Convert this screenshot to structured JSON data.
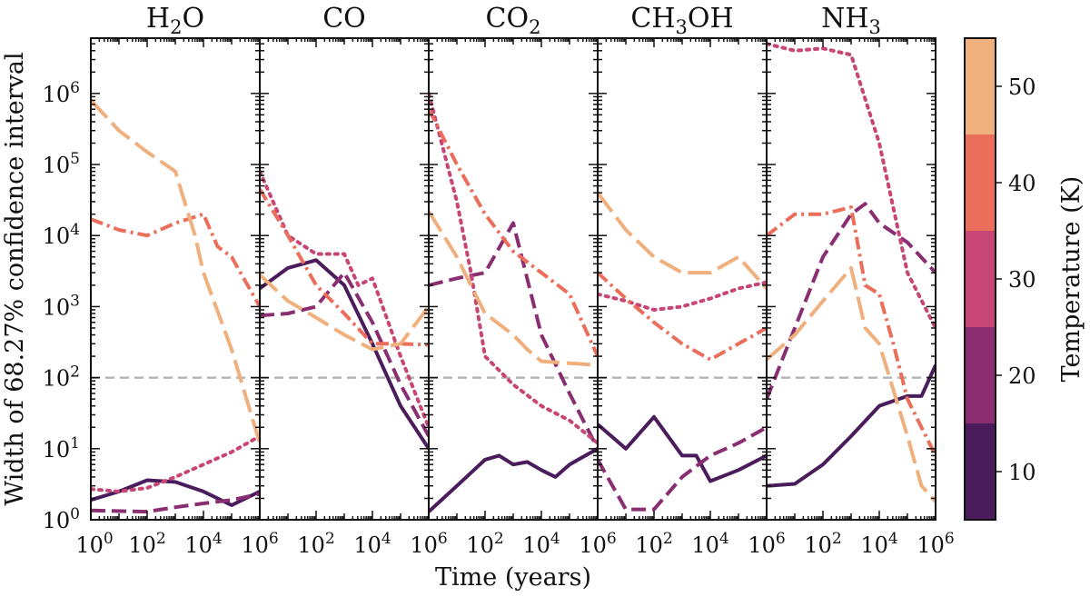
{
  "chart_data": {
    "type": "line",
    "xlabel": "Time (years)",
    "ylabel": "Width of 68.27% confidence interval",
    "xscale": "log",
    "yscale": "log",
    "xlim": [
      1,
      1000000
    ],
    "ylim": [
      1,
      6000000
    ],
    "reference_line_y": 100,
    "colorbar": {
      "label": "Temperature (K)",
      "ticks": [
        10,
        20,
        30,
        40,
        50
      ],
      "tick_labels": [
        "10",
        "20",
        "30",
        "40",
        "50"
      ],
      "range": [
        5,
        55
      ],
      "bands": [
        {
          "from": 5,
          "to": 15,
          "color": "#4a1c5c"
        },
        {
          "from": 15,
          "to": 25,
          "color": "#8a2e72"
        },
        {
          "from": 25,
          "to": 35,
          "color": "#c74675"
        },
        {
          "from": 35,
          "to": 45,
          "color": "#ea6e5a"
        },
        {
          "from": 45,
          "to": 55,
          "color": "#f0b07e"
        }
      ]
    },
    "x_tick_labels": [
      "10^0",
      "10^2",
      "10^4",
      "10^6"
    ],
    "y_tick_labels": [
      "10^0",
      "10^1",
      "10^2",
      "10^3",
      "10^4",
      "10^5",
      "10^6"
    ],
    "series_styles": [
      {
        "temperature": 10,
        "color": "#4a1c5c",
        "style": "solid"
      },
      {
        "temperature": 20,
        "color": "#8a2e72",
        "style": "dashed"
      },
      {
        "temperature": 30,
        "color": "#c74675",
        "style": "dotted"
      },
      {
        "temperature": 40,
        "color": "#ea6e5a",
        "style": "dashdot"
      },
      {
        "temperature": 50,
        "color": "#f0b07e",
        "style": "longdash"
      }
    ],
    "panels": [
      {
        "molecule": "H2O",
        "title": {
          "main": "H",
          "sub": "2",
          "rest": "O"
        },
        "series": [
          {
            "temperature": 10,
            "points": [
              [
                1,
                1.9
              ],
              [
                10,
                2.5
              ],
              [
                100,
                3.6
              ],
              [
                1000,
                3.4
              ],
              [
                10000,
                2.5
              ],
              [
                100000,
                1.6
              ],
              [
                1000000,
                2.5
              ]
            ]
          },
          {
            "temperature": 20,
            "points": [
              [
                1,
                1.35
              ],
              [
                100,
                1.3
              ],
              [
                1000,
                1.5
              ],
              [
                10000,
                1.7
              ],
              [
                100000,
                1.9
              ],
              [
                1000000,
                2.3
              ]
            ]
          },
          {
            "temperature": 30,
            "points": [
              [
                1,
                2.7
              ],
              [
                10,
                2.5
              ],
              [
                100,
                2.8
              ],
              [
                1000,
                4
              ],
              [
                10000,
                6
              ],
              [
                100000,
                9
              ],
              [
                1000000,
                15
              ]
            ]
          },
          {
            "temperature": 40,
            "points": [
              [
                1,
                17000
              ],
              [
                10,
                12000
              ],
              [
                100,
                10000
              ],
              [
                1000,
                15000
              ],
              [
                10000,
                20000
              ],
              [
                31600,
                7000
              ],
              [
                100000,
                5000
              ],
              [
                1000000,
                1000
              ]
            ]
          },
          {
            "temperature": 50,
            "points": [
              [
                1,
                800000
              ],
              [
                10,
                300000
              ],
              [
                100,
                150000
              ],
              [
                1000,
                80000
              ],
              [
                5000,
                10000
              ],
              [
                10000,
                3000
              ],
              [
                100000,
                250
              ],
              [
                1000000,
                12
              ]
            ]
          }
        ]
      },
      {
        "molecule": "CO",
        "title": {
          "main": "CO",
          "sub": "",
          "rest": ""
        },
        "series": [
          {
            "temperature": 10,
            "points": [
              [
                1,
                1800
              ],
              [
                10,
                3500
              ],
              [
                100,
                4500
              ],
              [
                1000,
                2000
              ],
              [
                10000,
                300
              ],
              [
                100000,
                40
              ],
              [
                1000000,
                10
              ]
            ]
          },
          {
            "temperature": 20,
            "points": [
              [
                1,
                750
              ],
              [
                10,
                800
              ],
              [
                100,
                1000
              ],
              [
                1000,
                3000
              ],
              [
                10000,
                600
              ],
              [
                100000,
                80
              ],
              [
                1000000,
                15
              ]
            ]
          },
          {
            "temperature": 30,
            "points": [
              [
                1,
                80000
              ],
              [
                10,
                10000
              ],
              [
                100,
                5500
              ],
              [
                1000,
                5500
              ],
              [
                3160,
                2000
              ],
              [
                10000,
                2500
              ],
              [
                100000,
                200
              ],
              [
                1000000,
                20
              ]
            ]
          },
          {
            "temperature": 40,
            "points": [
              [
                1,
                45000
              ],
              [
                10,
                10000
              ],
              [
                100,
                2000
              ],
              [
                1000,
                800
              ],
              [
                10000,
                300
              ],
              [
                100000,
                300
              ],
              [
                1000000,
                290
              ]
            ]
          },
          {
            "temperature": 50,
            "points": [
              [
                1,
                2800
              ],
              [
                10,
                1200
              ],
              [
                100,
                700
              ],
              [
                1000,
                400
              ],
              [
                10000,
                250
              ],
              [
                100000,
                300
              ],
              [
                1000000,
                1000
              ]
            ]
          }
        ]
      },
      {
        "molecule": "CO2",
        "title": {
          "main": "CO",
          "sub": "2",
          "rest": ""
        },
        "series": [
          {
            "temperature": 10,
            "points": [
              [
                1,
                1.3
              ],
              [
                10,
                3
              ],
              [
                100,
                7
              ],
              [
                316,
                8
              ],
              [
                1000,
                6
              ],
              [
                3160,
                6.5
              ],
              [
                10000,
                5
              ],
              [
                31600,
                4
              ],
              [
                100000,
                6
              ],
              [
                1000000,
                10
              ]
            ]
          },
          {
            "temperature": 20,
            "points": [
              [
                1,
                2000
              ],
              [
                10,
                2500
              ],
              [
                100,
                3000
              ],
              [
                1000,
                15000
              ],
              [
                10000,
                400
              ],
              [
                100000,
                60
              ],
              [
                1000000,
                10
              ]
            ]
          },
          {
            "temperature": 30,
            "points": [
              [
                1,
                1000000
              ],
              [
                10,
                30000
              ],
              [
                31.6,
                3000
              ],
              [
                100,
                200
              ],
              [
                1000,
                80
              ],
              [
                10000,
                40
              ],
              [
                100000,
                25
              ],
              [
                1000000,
                12
              ]
            ]
          },
          {
            "temperature": 40,
            "points": [
              [
                1,
                600000
              ],
              [
                10,
                100000
              ],
              [
                100,
                20000
              ],
              [
                1000,
                6000
              ],
              [
                10000,
                3000
              ],
              [
                100000,
                1500
              ],
              [
                1000000,
                200
              ]
            ]
          },
          {
            "temperature": 50,
            "points": [
              [
                1,
                22000
              ],
              [
                10,
                5000
              ],
              [
                100,
                800
              ],
              [
                1000,
                400
              ],
              [
                3160,
                250
              ],
              [
                10000,
                170
              ],
              [
                100000,
                160
              ],
              [
                1000000,
                150
              ]
            ]
          }
        ]
      },
      {
        "molecule": "CH3OH",
        "title": {
          "main": "CH",
          "sub": "3",
          "rest": "OH"
        },
        "series": [
          {
            "temperature": 10,
            "points": [
              [
                1,
                22
              ],
              [
                10,
                10
              ],
              [
                100,
                28
              ],
              [
                1000,
                8
              ],
              [
                3160,
                8
              ],
              [
                10000,
                3.5
              ],
              [
                100000,
                5
              ],
              [
                1000000,
                8
              ]
            ]
          },
          {
            "temperature": 20,
            "points": [
              [
                1,
                7
              ],
              [
                10,
                1.4
              ],
              [
                100,
                1.4
              ],
              [
                1000,
                4
              ],
              [
                10000,
                8
              ],
              [
                100000,
                12
              ],
              [
                1000000,
                20
              ]
            ]
          },
          {
            "temperature": 30,
            "points": [
              [
                1,
                1500
              ],
              [
                10,
                1200
              ],
              [
                100,
                900
              ],
              [
                1000,
                1000
              ],
              [
                10000,
                1300
              ],
              [
                100000,
                1800
              ],
              [
                1000000,
                2200
              ]
            ]
          },
          {
            "temperature": 40,
            "points": [
              [
                1,
                3000
              ],
              [
                10,
                1300
              ],
              [
                100,
                600
              ],
              [
                1000,
                300
              ],
              [
                10000,
                180
              ],
              [
                100000,
                300
              ],
              [
                1000000,
                500
              ]
            ]
          },
          {
            "temperature": 50,
            "points": [
              [
                1,
                40000
              ],
              [
                10,
                12000
              ],
              [
                100,
                5000
              ],
              [
                1000,
                3000
              ],
              [
                10000,
                3000
              ],
              [
                100000,
                5000
              ],
              [
                1000000,
                1800
              ]
            ]
          }
        ]
      },
      {
        "molecule": "NH3",
        "title": {
          "main": "NH",
          "sub": "3",
          "rest": ""
        },
        "series": [
          {
            "temperature": 10,
            "points": [
              [
                1,
                3
              ],
              [
                10,
                3.2
              ],
              [
                100,
                6
              ],
              [
                1000,
                15
              ],
              [
                10000,
                40
              ],
              [
                100000,
                55
              ],
              [
                316000,
                55
              ],
              [
                1000000,
                150
              ]
            ]
          },
          {
            "temperature": 20,
            "points": [
              [
                1,
                50
              ],
              [
                10,
                500
              ],
              [
                100,
                5000
              ],
              [
                1000,
                20000
              ],
              [
                3160,
                28000
              ],
              [
                10000,
                15000
              ],
              [
                100000,
                8000
              ],
              [
                1000000,
                3000
              ]
            ]
          },
          {
            "temperature": 30,
            "points": [
              [
                1,
                5000000
              ],
              [
                10,
                4000000
              ],
              [
                100,
                4300000
              ],
              [
                1000,
                3500000
              ],
              [
                10000,
                200000
              ],
              [
                100000,
                3000
              ],
              [
                1000000,
                500
              ]
            ]
          },
          {
            "temperature": 40,
            "points": [
              [
                1,
                10000
              ],
              [
                10,
                20000
              ],
              [
                100,
                20000
              ],
              [
                1000,
                25000
              ],
              [
                3160,
                2000
              ],
              [
                10000,
                1500
              ],
              [
                31600,
                300
              ],
              [
                100000,
                50
              ],
              [
                1000000,
                8
              ]
            ]
          },
          {
            "temperature": 50,
            "points": [
              [
                1,
                180
              ],
              [
                10,
                400
              ],
              [
                100,
                1200
              ],
              [
                1000,
                3500
              ],
              [
                3160,
                500
              ],
              [
                10000,
                300
              ],
              [
                100000,
                15
              ],
              [
                316000,
                3
              ],
              [
                1000000,
                1.8
              ]
            ]
          }
        ]
      }
    ]
  }
}
